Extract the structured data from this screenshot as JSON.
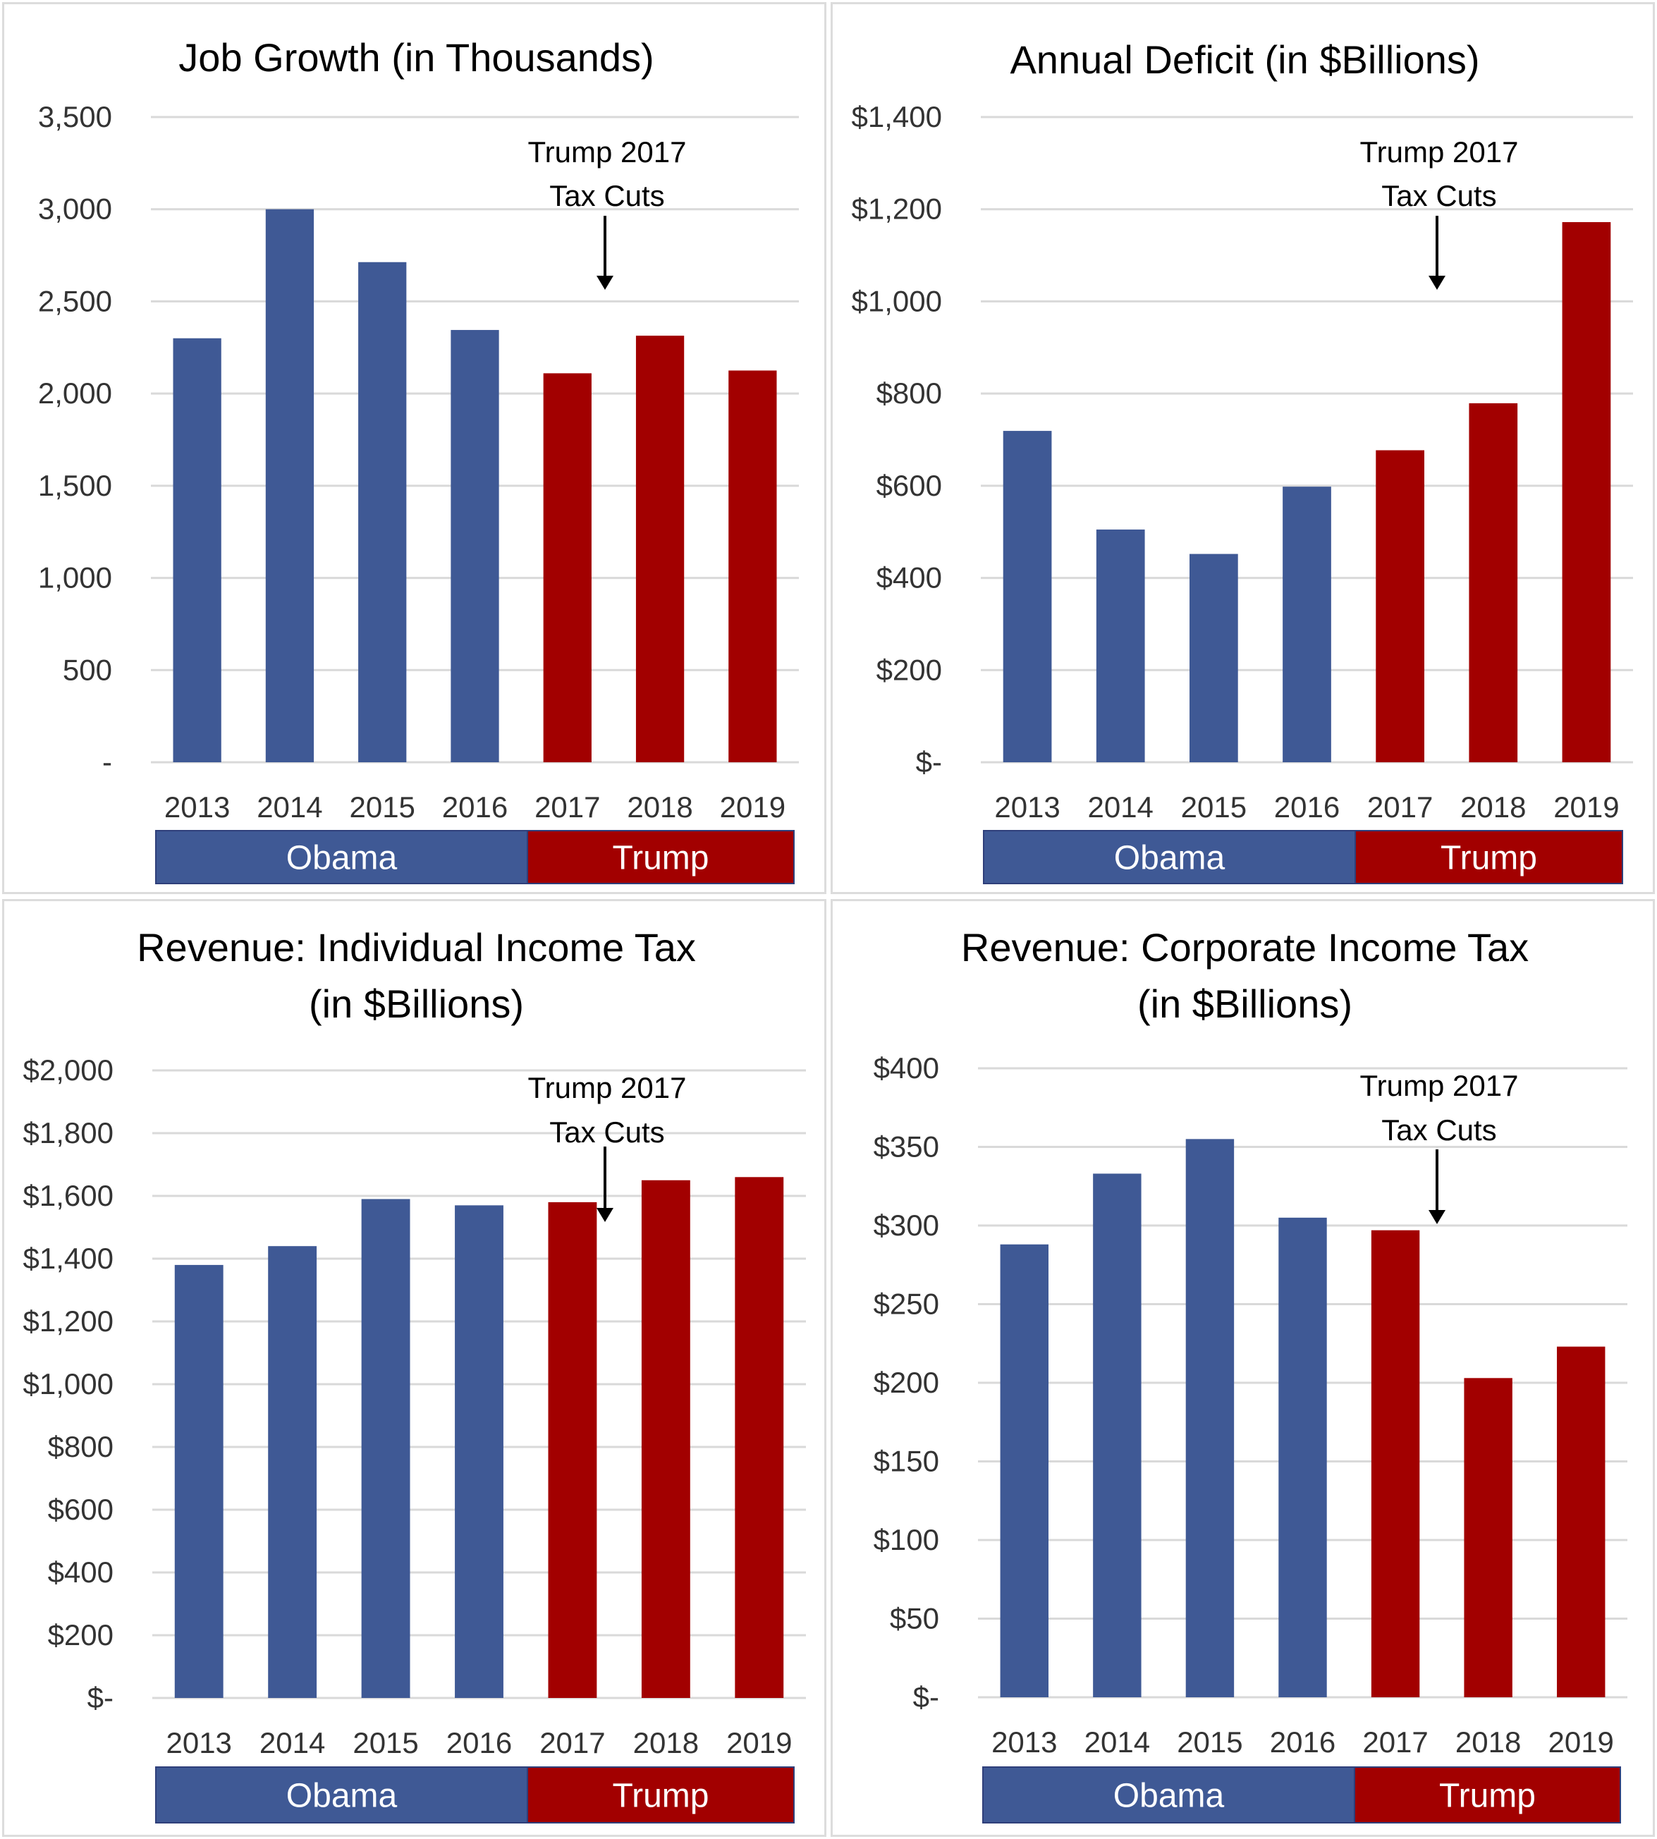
{
  "colors": {
    "obama": "#3f5995",
    "trump": "#a20000",
    "grid": "#d9d9d9",
    "text": "#333333"
  },
  "chart_data": [
    {
      "type": "bar",
      "title_lines": [
        "Job Growth (in Thousands)"
      ],
      "categories": [
        "2013",
        "2014",
        "2015",
        "2016",
        "2017",
        "2018",
        "2019"
      ],
      "values": [
        2300,
        3000,
        2713,
        2345,
        2110,
        2314,
        2125
      ],
      "bar_colors": [
        "obama",
        "obama",
        "obama",
        "obama",
        "trump",
        "trump",
        "trump"
      ],
      "ylim": [
        0,
        3500
      ],
      "ytick_values": [
        0,
        500,
        1000,
        1500,
        2000,
        2500,
        3000,
        3500
      ],
      "ytick_labels": [
        "-",
        "500",
        "1,000",
        "1,500",
        "2,000",
        "2,500",
        "3,000",
        "3,500"
      ],
      "annotation": {
        "lines": [
          "Trump 2017",
          "Tax Cuts"
        ]
      },
      "groups": [
        {
          "label": "Obama",
          "color": "obama",
          "from": 0,
          "to": 3
        },
        {
          "label": "Trump",
          "color": "trump",
          "from": 4,
          "to": 6
        }
      ]
    },
    {
      "type": "bar",
      "title_lines": [
        "Annual Deficit (in $Billions)"
      ],
      "categories": [
        "2013",
        "2014",
        "2015",
        "2016",
        "2017",
        "2018",
        "2019"
      ],
      "values": [
        719,
        505,
        452,
        598,
        677,
        779,
        1172
      ],
      "bar_colors": [
        "obama",
        "obama",
        "obama",
        "obama",
        "trump",
        "trump",
        "trump"
      ],
      "ylim": [
        0,
        1400
      ],
      "ytick_values": [
        0,
        200,
        400,
        600,
        800,
        1000,
        1200,
        1400
      ],
      "ytick_labels": [
        "$-",
        "$200",
        "$400",
        "$600",
        "$800",
        "$1,000",
        "$1,200",
        "$1,400"
      ],
      "annotation": {
        "lines": [
          "Trump 2017",
          "Tax Cuts"
        ]
      },
      "groups": [
        {
          "label": "Obama",
          "color": "obama",
          "from": 0,
          "to": 3
        },
        {
          "label": "Trump",
          "color": "trump",
          "from": 4,
          "to": 6
        }
      ]
    },
    {
      "type": "bar",
      "title_lines": [
        "Revenue: Individual Income Tax",
        "(in $Billions)"
      ],
      "categories": [
        "2013",
        "2014",
        "2015",
        "2016",
        "2017",
        "2018",
        "2019"
      ],
      "values": [
        1380,
        1440,
        1590,
        1570,
        1580,
        1650,
        1660
      ],
      "bar_colors": [
        "obama",
        "obama",
        "obama",
        "obama",
        "trump",
        "trump",
        "trump"
      ],
      "ylim": [
        0,
        2000
      ],
      "ytick_values": [
        0,
        200,
        400,
        600,
        800,
        1000,
        1200,
        1400,
        1600,
        1800,
        2000
      ],
      "ytick_labels": [
        "$-",
        "$200",
        "$400",
        "$600",
        "$800",
        "$1,000",
        "$1,200",
        "$1,400",
        "$1,600",
        "$1,800",
        "$2,000"
      ],
      "annotation": {
        "lines": [
          "Trump 2017",
          "Tax Cuts"
        ]
      },
      "groups": [
        {
          "label": "Obama",
          "color": "obama",
          "from": 0,
          "to": 3
        },
        {
          "label": "Trump",
          "color": "trump",
          "from": 4,
          "to": 6
        }
      ]
    },
    {
      "type": "bar",
      "title_lines": [
        "Revenue: Corporate Income Tax",
        "(in $Billions)"
      ],
      "categories": [
        "2013",
        "2014",
        "2015",
        "2016",
        "2017",
        "2018",
        "2019"
      ],
      "values": [
        288,
        333,
        355,
        305,
        297,
        203,
        223
      ],
      "bar_colors": [
        "obama",
        "obama",
        "obama",
        "obama",
        "trump",
        "trump",
        "trump"
      ],
      "ylim": [
        0,
        400
      ],
      "ytick_values": [
        0,
        50,
        100,
        150,
        200,
        250,
        300,
        350,
        400
      ],
      "ytick_labels": [
        "$-",
        "$50",
        "$100",
        "$150",
        "$200",
        "$250",
        "$300",
        "$350",
        "$400"
      ],
      "annotation": {
        "lines": [
          "Trump 2017",
          "Tax Cuts"
        ]
      },
      "groups": [
        {
          "label": "Obama",
          "color": "obama",
          "from": 0,
          "to": 3
        },
        {
          "label": "Trump",
          "color": "trump",
          "from": 4,
          "to": 6
        }
      ]
    }
  ]
}
